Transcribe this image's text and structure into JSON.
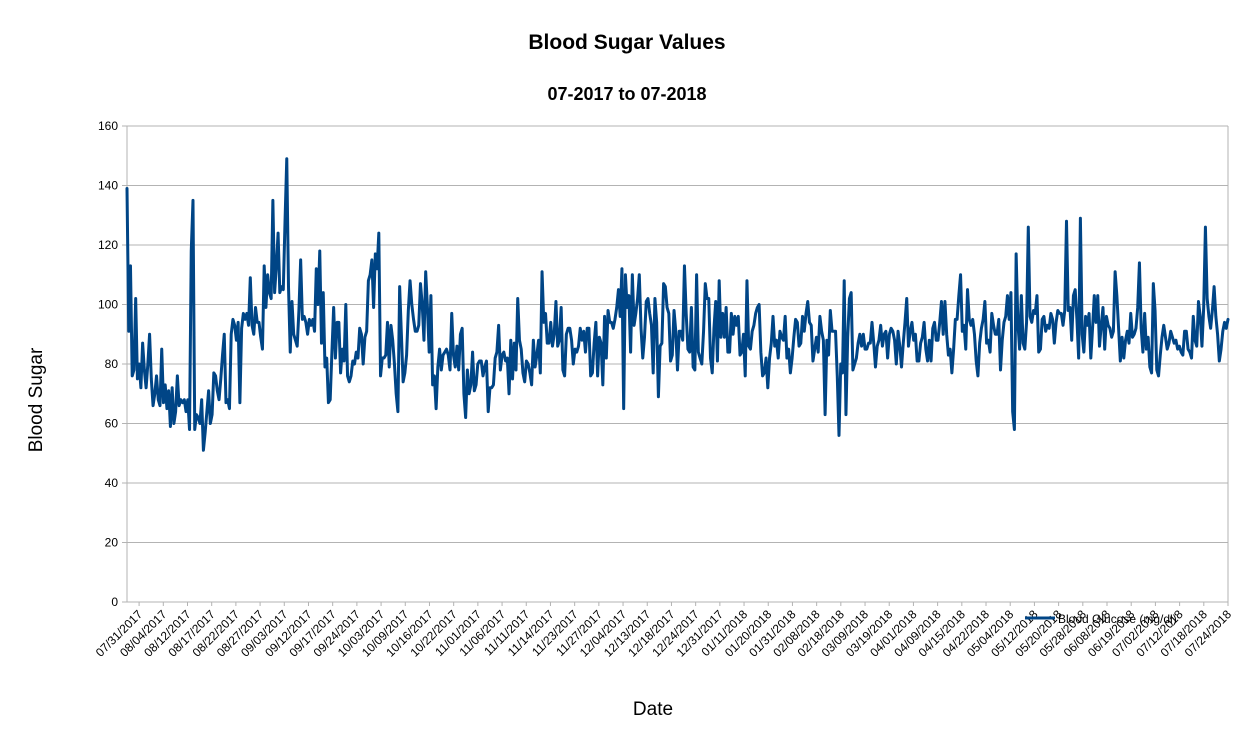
{
  "chart_data": {
    "type": "line",
    "title": "Blood Sugar Values",
    "subtitle": "07-2017 to 07-2018",
    "xlabel": "Date",
    "ylabel": "Blood Sugar",
    "ylim": [
      0,
      160
    ],
    "yticks": [
      0,
      20,
      40,
      60,
      80,
      100,
      120,
      140,
      160
    ],
    "grid": true,
    "legend_placement": "bottom-right",
    "line_color": "#004586",
    "x_tick_labels": [
      "07/31/2017",
      "08/04/2017",
      "08/12/2017",
      "08/17/2017",
      "08/22/2017",
      "08/27/2017",
      "09/03/2017",
      "09/12/2017",
      "09/17/2017",
      "09/24/2017",
      "10/03/2017",
      "10/09/2017",
      "10/16/2017",
      "10/22/2017",
      "11/01/2017",
      "11/06/2017",
      "11/11/2017",
      "11/14/2017",
      "11/23/2017",
      "11/27/2017",
      "12/04/2017",
      "12/13/2017",
      "12/18/2017",
      "12/24/2017",
      "12/31/2017",
      "01/11/2018",
      "01/20/2018",
      "01/31/2018",
      "02/08/2018",
      "02/18/2018",
      "03/09/2018",
      "03/19/2018",
      "04/01/2018",
      "04/09/2018",
      "04/15/2018",
      "04/22/2018",
      "05/04/2018",
      "05/12/2018",
      "05/20/2018",
      "05/28/2018",
      "06/08/2018",
      "06/19/2018",
      "07/02/2018",
      "07/12/2018",
      "07/18/2018",
      "07/24/2018"
    ],
    "series": [
      {
        "name": "Blood Glucose (mg/dl)",
        "values": [
          139,
          91,
          113,
          76,
          78,
          102,
          75,
          80,
          72,
          87,
          78,
          72,
          80,
          90,
          75,
          66,
          70,
          76,
          68,
          66,
          85,
          67,
          73,
          65,
          71,
          59,
          72,
          60,
          64,
          76,
          66,
          68,
          67,
          68,
          64,
          68,
          58,
          118,
          135,
          58,
          63,
          62,
          60,
          68,
          51,
          57,
          64,
          71,
          60,
          63,
          77,
          76,
          71,
          68,
          75,
          83,
          90,
          67,
          68,
          65,
          90,
          95,
          93,
          88,
          94,
          67,
          92,
          97,
          95,
          97,
          93,
          109,
          93,
          90,
          99,
          94,
          94,
          89,
          85,
          113,
          99,
          110,
          104,
          102,
          135,
          104,
          113,
          124,
          104,
          106,
          105,
          128,
          149,
          106,
          84,
          101,
          90,
          88,
          86,
          98,
          115,
          95,
          96,
          94,
          90,
          95,
          93,
          95,
          91,
          112,
          100,
          118,
          87,
          104,
          79,
          82,
          67,
          68,
          84,
          99,
          82,
          94,
          94,
          77,
          85,
          81,
          100,
          76,
          74,
          76,
          81,
          80,
          84,
          82,
          92,
          90,
          80,
          89,
          91,
          108,
          110,
          115,
          99,
          117,
          112,
          124,
          76,
          82,
          82,
          83,
          94,
          79,
          93,
          88,
          80,
          70,
          64,
          106,
          90,
          74,
          77,
          83,
          98,
          108,
          100,
          95,
          91,
          91,
          93,
          107,
          100,
          88,
          111,
          99,
          84,
          103,
          73,
          76,
          65,
          79,
          85,
          78,
          83,
          84,
          85,
          83,
          78,
          97,
          83,
          79,
          86,
          78,
          90,
          92,
          70,
          62,
          78,
          70,
          73,
          84,
          71,
          73,
          80,
          81,
          81,
          76,
          79,
          81,
          64,
          72,
          72,
          73,
          82,
          84,
          93,
          78,
          83,
          84,
          81,
          82,
          70,
          88,
          75,
          87,
          78,
          102,
          88,
          85,
          77,
          74,
          81,
          80,
          77,
          73,
          88,
          79,
          83,
          88,
          77,
          111,
          94,
          97,
          87,
          87,
          94,
          86,
          90,
          101,
          86,
          88,
          99,
          78,
          76,
          90,
          92,
          92,
          88,
          80,
          85,
          84,
          86,
          92,
          88,
          91,
          84,
          92,
          92,
          76,
          77,
          87,
          94,
          76,
          89,
          87,
          73,
          96,
          82,
          98,
          94,
          94,
          92,
          95,
          99,
          105,
          96,
          112,
          65,
          110,
          99,
          103,
          84,
          110,
          93,
          97,
          102,
          110,
          92,
          82,
          89,
          101,
          102,
          97,
          93,
          77,
          102,
          94,
          69,
          86,
          87,
          107,
          106,
          99,
          97,
          81,
          83,
          98,
          91,
          78,
          91,
          91,
          88,
          113,
          97,
          85,
          84,
          99,
          79,
          78,
          110,
          84,
          82,
          80,
          91,
          107,
          102,
          102,
          82,
          77,
          92,
          101,
          81,
          108,
          89,
          97,
          89,
          99,
          84,
          84,
          97,
          90,
          96,
          93,
          96,
          83,
          84,
          90,
          76,
          108,
          86,
          85,
          91,
          93,
          97,
          99,
          100,
          84,
          76,
          77,
          82,
          72,
          82,
          87,
          96,
          86,
          88,
          82,
          91,
          89,
          88,
          96,
          82,
          85,
          77,
          82,
          89,
          95,
          94,
          86,
          87,
          96,
          91,
          97,
          101,
          94,
          93,
          81,
          85,
          89,
          84,
          96,
          91,
          88,
          63,
          88,
          83,
          98,
          91,
          91,
          91,
          76,
          56,
          80,
          77,
          108,
          63,
          89,
          102,
          104,
          78,
          80,
          82,
          87,
          90,
          86,
          90,
          85,
          85,
          87,
          87,
          94,
          87,
          79,
          86,
          88,
          93,
          86,
          90,
          91,
          82,
          90,
          92,
          91,
          88,
          80,
          91,
          86,
          79,
          87,
          94,
          102,
          86,
          91,
          94,
          88,
          90,
          81,
          81,
          87,
          89,
          94,
          85,
          81,
          88,
          81,
          92,
          94,
          88,
          88,
          94,
          101,
          90,
          101,
          90,
          83,
          85,
          77,
          85,
          95,
          95,
          103,
          110,
          91,
          93,
          85,
          105,
          95,
          93,
          95,
          90,
          81,
          76,
          87,
          92,
          95,
          101,
          87,
          88,
          84,
          97,
          93,
          90,
          90,
          95,
          78,
          88,
          94,
          96,
          103,
          95,
          104,
          64,
          58,
          117,
          94,
          85,
          103,
          87,
          85,
          94,
          126,
          96,
          94,
          98,
          97,
          103,
          84,
          85,
          95,
          96,
          91,
          93,
          92,
          97,
          95,
          87,
          94,
          98,
          97,
          97,
          93,
          98,
          128,
          98,
          99,
          88,
          103,
          105,
          95,
          82,
          129,
          90,
          84,
          96,
          93,
          97,
          82,
          92,
          103,
          94,
          103,
          86,
          93,
          99,
          85,
          96,
          93,
          92,
          89,
          91,
          111,
          103,
          92,
          81,
          89,
          82,
          88,
          91,
          87,
          97,
          89,
          90,
          92,
          99,
          114,
          92,
          84,
          97,
          85,
          89,
          79,
          77,
          107,
          98,
          78,
          76,
          83,
          89,
          93,
          89,
          85,
          87,
          91,
          89,
          87,
          88,
          85,
          86,
          84,
          83,
          91,
          91,
          85,
          84,
          82,
          96,
          88,
          86,
          101,
          96,
          86,
          99,
          126,
          102,
          96,
          92,
          98,
          106,
          96,
          90,
          81,
          85,
          91,
          94,
          92,
          95
        ]
      }
    ]
  }
}
